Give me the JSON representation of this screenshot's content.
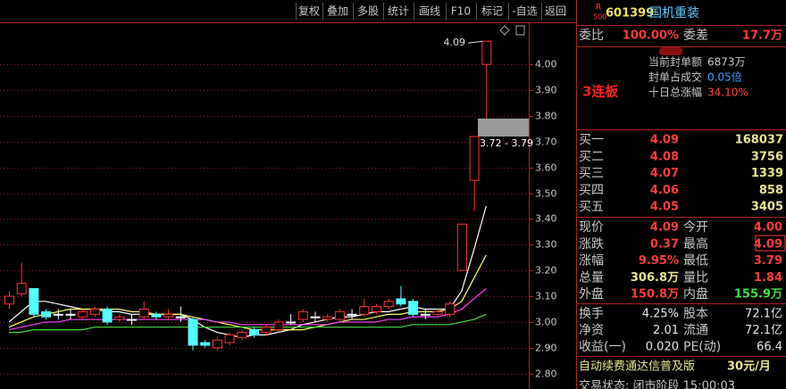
{
  "toolbar": [
    "复权",
    "叠加",
    "多股",
    "统计",
    "画线",
    "F10",
    "标记",
    "-自选",
    "返回"
  ],
  "chart_data": {
    "type": "candlestick",
    "up_color": "#ff3232",
    "down_color": "#54ffff",
    "grid": true,
    "ylim": [
      2.74,
      4.25
    ],
    "yticks": [
      {
        "value": 2.8,
        "label": "2.80"
      },
      {
        "value": 2.9,
        "label": "2.90"
      },
      {
        "value": 3.0,
        "label": "3.00"
      },
      {
        "value": 3.1,
        "label": "3.10"
      },
      {
        "value": 3.2,
        "label": "3.20"
      },
      {
        "value": 3.3,
        "label": "3.30"
      },
      {
        "value": 3.4,
        "label": "3.40"
      },
      {
        "value": 3.5,
        "label": "3.50"
      },
      {
        "value": 3.6,
        "label": "3.60"
      },
      {
        "value": 3.7,
        "label": "3.70"
      },
      {
        "value": 3.8,
        "label": "3.80"
      },
      {
        "value": 3.9,
        "label": "3.90"
      },
      {
        "value": 4.0,
        "label": "4.00"
      }
    ],
    "open": [
      3.07,
      3.11,
      3.13,
      3.04,
      3.03,
      3.03,
      3.02,
      3.03,
      3.05,
      3.01,
      3.01,
      3.02,
      3.03,
      3.02,
      3.02,
      3.01,
      2.92,
      2.9,
      2.92,
      2.94,
      2.97,
      2.96,
      2.97,
      3.0,
      3.01,
      3.02,
      3.01,
      3.01,
      3.03,
      3.03,
      3.04,
      3.06,
      3.09,
      3.08,
      3.03,
      3.03,
      3.03,
      3.2,
      3.55,
      4.0
    ],
    "high": [
      3.12,
      3.23,
      3.13,
      3.05,
      3.05,
      3.05,
      3.05,
      3.06,
      3.06,
      3.03,
      3.03,
      3.08,
      3.04,
      3.05,
      3.06,
      3.02,
      2.93,
      2.94,
      2.96,
      2.97,
      2.98,
      2.99,
      3.01,
      3.03,
      3.05,
      3.04,
      3.03,
      3.05,
      3.05,
      3.09,
      3.07,
      3.09,
      3.14,
      3.09,
      3.05,
      3.05,
      3.08,
      3.38,
      3.72,
      4.09
    ],
    "low": [
      3.05,
      3.1,
      3.02,
      3.01,
      3.01,
      3.01,
      3.01,
      3.02,
      2.99,
      3.0,
      2.99,
      3.01,
      3.01,
      3.01,
      3.0,
      2.89,
      2.9,
      2.89,
      2.91,
      2.93,
      2.94,
      2.95,
      2.96,
      2.99,
      3.0,
      3.0,
      3.0,
      3.0,
      3.01,
      3.02,
      3.03,
      3.05,
      3.06,
      3.02,
      3.01,
      3.02,
      3.02,
      3.2,
      3.43,
      3.79
    ],
    "close": [
      3.1,
      3.15,
      3.03,
      3.02,
      3.03,
      3.03,
      3.04,
      3.05,
      3.0,
      3.02,
      3.01,
      3.05,
      3.02,
      3.03,
      3.02,
      2.91,
      2.91,
      2.93,
      2.95,
      2.96,
      2.95,
      2.98,
      3.0,
      3.0,
      3.04,
      3.02,
      3.02,
      3.04,
      3.03,
      3.06,
      3.06,
      3.08,
      3.07,
      3.03,
      3.03,
      3.04,
      3.07,
      3.38,
      3.72,
      4.09
    ],
    "ma_lines": [
      {
        "color": "#ffffff",
        "values": [
          3.0,
          3.04,
          3.08,
          3.08,
          3.07,
          3.06,
          3.05,
          3.05,
          3.04,
          3.04,
          3.03,
          3.03,
          3.03,
          3.03,
          3.03,
          3.01,
          2.98,
          2.96,
          2.95,
          2.94,
          2.95,
          2.95,
          2.96,
          2.97,
          2.99,
          3.0,
          3.01,
          3.02,
          3.02,
          3.03,
          3.04,
          3.04,
          3.05,
          3.06,
          3.05,
          3.05,
          3.05,
          3.12,
          3.28,
          3.45
        ]
      },
      {
        "color": "#ffff66",
        "values": [
          2.98,
          3.0,
          3.02,
          3.03,
          3.04,
          3.05,
          3.05,
          3.05,
          3.05,
          3.05,
          3.04,
          3.04,
          3.03,
          3.03,
          3.03,
          3.02,
          3.01,
          3.0,
          2.99,
          2.98,
          2.97,
          2.97,
          2.97,
          2.97,
          2.97,
          2.98,
          2.99,
          3.0,
          3.01,
          3.01,
          3.02,
          3.03,
          3.03,
          3.04,
          3.04,
          3.04,
          3.05,
          3.08,
          3.17,
          3.26
        ]
      },
      {
        "color": "#ff44ff",
        "values": [
          2.97,
          2.98,
          2.99,
          3.0,
          3.0,
          3.01,
          3.01,
          3.01,
          3.01,
          3.01,
          3.01,
          3.01,
          3.01,
          3.01,
          3.01,
          3.01,
          3.01,
          3.0,
          3.0,
          2.99,
          2.99,
          2.99,
          2.99,
          2.99,
          2.99,
          2.99,
          2.99,
          3.0,
          3.0,
          3.0,
          3.0,
          3.01,
          3.01,
          3.02,
          3.02,
          3.02,
          3.03,
          3.05,
          3.09,
          3.13
        ]
      },
      {
        "color": "#44dd44",
        "values": [
          2.96,
          2.96,
          2.97,
          2.97,
          2.97,
          2.97,
          2.97,
          2.98,
          2.98,
          2.98,
          2.98,
          2.98,
          2.98,
          2.98,
          2.98,
          2.98,
          2.98,
          2.98,
          2.98,
          2.98,
          2.98,
          2.98,
          2.98,
          2.98,
          2.98,
          2.98,
          2.98,
          2.98,
          2.98,
          2.98,
          2.98,
          2.98,
          2.98,
          2.99,
          2.99,
          2.99,
          2.99,
          3.0,
          3.01,
          3.03
        ]
      }
    ],
    "max_label": "4.09",
    "gap_band": {
      "low": 3.72,
      "high": 3.79,
      "label": "3.72 - 3.79"
    }
  },
  "panel": {
    "logo_top": "R",
    "logo_bottom": "500",
    "code": "601399",
    "name": "国机重装",
    "ratio": {
      "l1": "委比",
      "v1": "100.00%",
      "l2": "委差",
      "v2": "17.7万"
    },
    "streak": "3连板",
    "info": [
      {
        "label": "当前封单额",
        "value": "6873万"
      },
      {
        "label": "封单占成交",
        "value": "0.05倍"
      },
      {
        "label": "十日总涨幅",
        "value": "34.10%"
      }
    ],
    "order_book": [
      {
        "label": "买一",
        "price": "4.09",
        "volume": "168037"
      },
      {
        "label": "买二",
        "price": "4.08",
        "volume": "3756"
      },
      {
        "label": "买三",
        "price": "4.07",
        "volume": "1339"
      },
      {
        "label": "买四",
        "price": "4.06",
        "volume": "858"
      },
      {
        "label": "买五",
        "price": "4.05",
        "volume": "3405"
      }
    ],
    "quote": [
      {
        "l1": "现价",
        "v1": "4.09",
        "l2": "今开",
        "v2": "4.00"
      },
      {
        "l1": "涨跌",
        "v1": "0.37",
        "l2": "最高",
        "v2": "4.09"
      },
      {
        "l1": "涨幅",
        "v1": "9.95%",
        "l2": "最低",
        "v2": "3.79"
      },
      {
        "l1": "总量",
        "v1": "306.8万",
        "l2": "量比",
        "v2": "1.84"
      },
      {
        "l1": "外盘",
        "v1": "150.8万",
        "l2": "内盘",
        "v2": "155.9万"
      }
    ],
    "finance": [
      {
        "l1": "换手",
        "v1": "4.25%",
        "l2": "股本",
        "v2": "72.1亿"
      },
      {
        "l1": "净资",
        "v1": "2.01",
        "l2": "流通",
        "v2": "72.1亿"
      },
      {
        "l1": "收益(一)",
        "v1": "0.020",
        "l2": "PE(动)",
        "v2": "66.4"
      }
    ],
    "promo": "自动续费通达信普及版",
    "price_tag": "30元/月",
    "status": "交易状态: 闭市阶段 15:00:03"
  }
}
